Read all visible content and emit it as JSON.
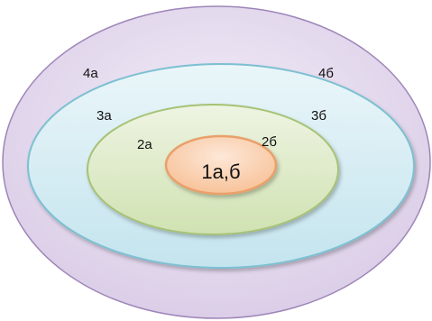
{
  "diagram": {
    "layers": [
      {
        "name": "outer",
        "fill": "#e6dcee",
        "stroke": "#9d85b8"
      },
      {
        "name": "third",
        "fill": "#d2ebf2",
        "stroke": "#7cc0d2"
      },
      {
        "name": "second",
        "fill": "#dde9c6",
        "stroke": "#a6c276"
      },
      {
        "name": "core",
        "fill": "#fbd5b8",
        "stroke": "#e9a06a"
      }
    ],
    "labels": {
      "l4a": "4а",
      "l4b": "4б",
      "l3a": "3а",
      "l3b": "3б",
      "l2a": "2а",
      "l2b": "2б",
      "core": "1а,б"
    }
  }
}
